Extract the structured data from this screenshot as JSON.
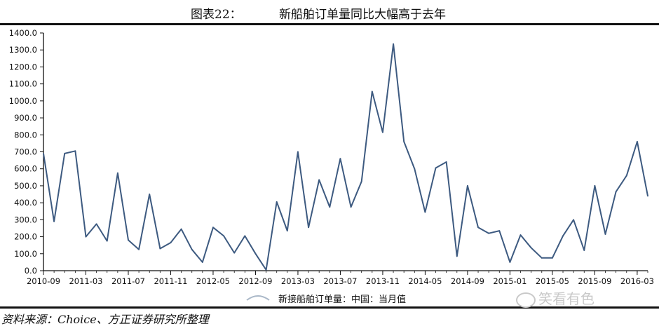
{
  "header": {
    "figure_label": "图表22：",
    "title": "新船舶订单量同比大幅高于去年"
  },
  "footer": {
    "source": "资料来源：Choice、方正证券研究所整理",
    "watermark": "笑看有色"
  },
  "colors": {
    "line": "#3d5a80",
    "axis": "#111111",
    "rule": "#111111"
  },
  "chart_data": {
    "type": "line",
    "title": "新船舶订单量同比大幅高于去年",
    "ylim": [
      0,
      1400
    ],
    "y_ticks": [
      "0.0",
      "100.0",
      "200.0",
      "300.0",
      "400.0",
      "500.0",
      "600.0",
      "700.0",
      "800.0",
      "900.0",
      "1000.0",
      "1100.0",
      "1200.0",
      "1300.0",
      "1400.0"
    ],
    "x_tick_labels": [
      "2010-09",
      "2011-03",
      "2011-07",
      "2011-11",
      "2012-05",
      "2012-09",
      "2013-03",
      "2013-07",
      "2013-11",
      "2014-05",
      "2014-09",
      "2015-01",
      "2015-05",
      "2015-09",
      "2016-03"
    ],
    "x_tick_index": [
      0,
      4,
      8,
      12,
      16,
      20,
      24,
      28,
      32,
      36,
      40,
      44,
      48,
      52,
      56
    ],
    "legend_position": "bottom",
    "grid": false,
    "series": [
      {
        "name": "新接船舶订单量：中国：当月值",
        "values": [
          690,
          290,
          690,
          705,
          200,
          275,
          175,
          575,
          180,
          125,
          450,
          130,
          165,
          245,
          125,
          50,
          255,
          205,
          105,
          205,
          100,
          5,
          405,
          235,
          700,
          255,
          535,
          375,
          660,
          375,
          525,
          1055,
          815,
          1335,
          760,
          600,
          345,
          605,
          640,
          85,
          500,
          255,
          220,
          235,
          50,
          210,
          135,
          75,
          75,
          205,
          300,
          120,
          500,
          215,
          465,
          560,
          760,
          440
        ]
      }
    ]
  }
}
